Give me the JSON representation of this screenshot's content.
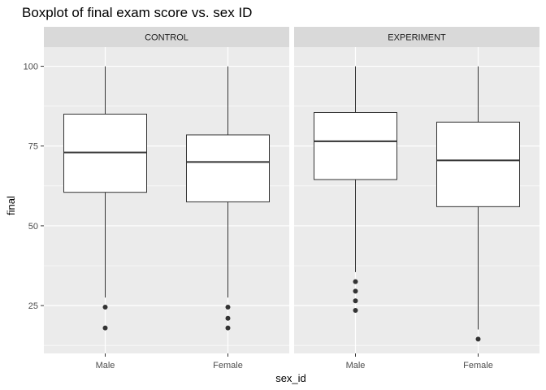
{
  "chart_data": {
    "type": "boxplot",
    "title": "Boxplot of final exam score vs. sex ID",
    "xlabel": "sex_id",
    "ylabel": "final",
    "categories": [
      "Male",
      "Female"
    ],
    "facets": [
      "CONTROL",
      "EXPERIMENT"
    ],
    "ylim": [
      10,
      106
    ],
    "yticks": [
      25,
      50,
      75,
      100
    ],
    "grid": true,
    "colors": {
      "panel_background": "#ebebeb",
      "strip_background": "#d9d9d9",
      "grid": "#ffffff",
      "box_fill": "#ffffff",
      "box_stroke": "#333333",
      "outlier": "#333333"
    },
    "panels": [
      {
        "facet": "CONTROL",
        "boxes": [
          {
            "category": "Male",
            "lower_whisker": 27.5,
            "q1": 60.5,
            "median": 73,
            "q3": 85,
            "upper_whisker": 100,
            "outliers": [
              24.5,
              18
            ]
          },
          {
            "category": "Female",
            "lower_whisker": 27.5,
            "q1": 57.5,
            "median": 70,
            "q3": 78.5,
            "upper_whisker": 100,
            "outliers": [
              24.5,
              21,
              18
            ]
          }
        ]
      },
      {
        "facet": "EXPERIMENT",
        "boxes": [
          {
            "category": "Male",
            "lower_whisker": 35.5,
            "q1": 64.5,
            "median": 76.5,
            "q3": 85.5,
            "upper_whisker": 100,
            "outliers": [
              32.5,
              29.5,
              26.5,
              23.5
            ]
          },
          {
            "category": "Female",
            "lower_whisker": 17.5,
            "q1": 56,
            "median": 70.5,
            "q3": 82.5,
            "upper_whisker": 100,
            "outliers": [
              14.5
            ]
          }
        ]
      }
    ]
  }
}
